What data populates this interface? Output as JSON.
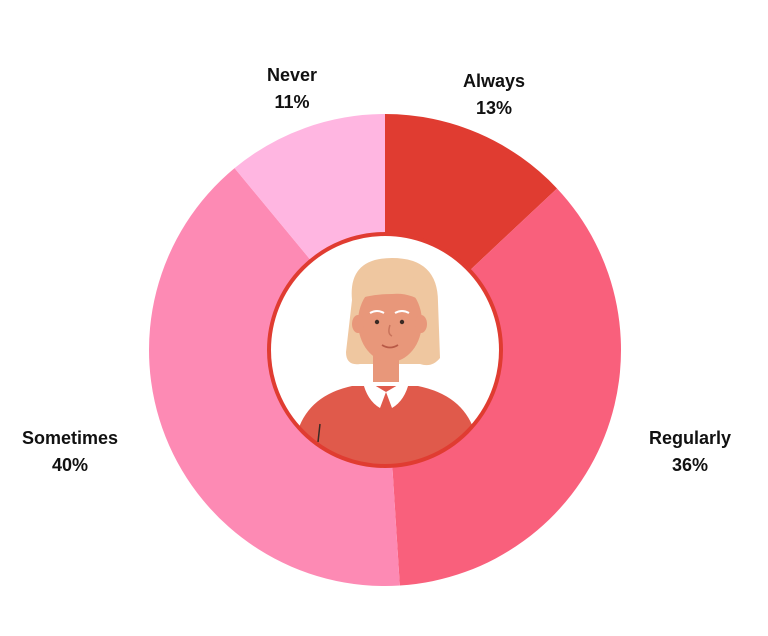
{
  "chart_data": {
    "type": "pie",
    "donut": true,
    "legend": "none",
    "categories": [
      "Always",
      "Regularly",
      "Sometimes",
      "Never"
    ],
    "values": [
      13,
      36,
      40,
      11
    ],
    "value_labels": [
      "13%",
      "36%",
      "40%",
      "11%"
    ],
    "colors": [
      "#e03c31",
      "#f9607c",
      "#fd8ab4",
      "#ffb6e1"
    ],
    "center_image": "elderly-woman-avatar"
  },
  "colors": {
    "center_ring": "#e03c31",
    "center_fill": "#ffffff",
    "hair": "#efc7a0",
    "skin": "#e8977a",
    "sweater": "#e05a4b",
    "collar": "#ffffff"
  }
}
